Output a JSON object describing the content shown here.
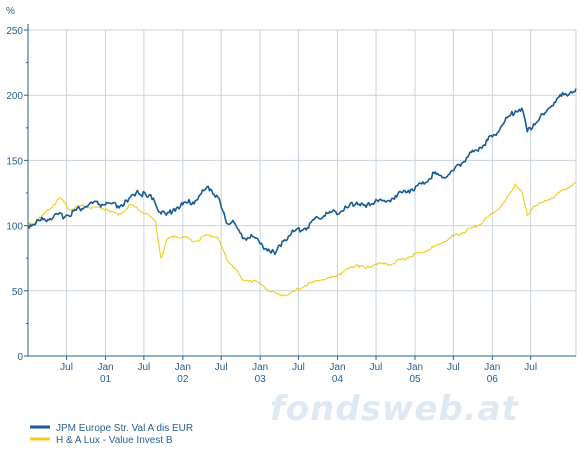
{
  "watermark": "fondsweb.at",
  "chart_data": {
    "type": "line",
    "y_unit": "%",
    "ylim": [
      0,
      250
    ],
    "y_ticks": [
      0,
      50,
      100,
      150,
      200,
      250
    ],
    "grid": true,
    "legend_position": "bottom-left",
    "x_range": [
      "2000-01-01",
      "2007-01-31"
    ],
    "x_tick_marks": [
      {
        "date": "2000-07-01",
        "month": "Jul",
        "year": ""
      },
      {
        "date": "2001-01-01",
        "month": "Jan",
        "year": "01"
      },
      {
        "date": "2001-07-01",
        "month": "Jul",
        "year": ""
      },
      {
        "date": "2002-01-01",
        "month": "Jan",
        "year": "02"
      },
      {
        "date": "2002-07-01",
        "month": "Jul",
        "year": ""
      },
      {
        "date": "2003-01-01",
        "month": "Jan",
        "year": "03"
      },
      {
        "date": "2003-07-01",
        "month": "Jul",
        "year": ""
      },
      {
        "date": "2004-01-01",
        "month": "Jan",
        "year": "04"
      },
      {
        "date": "2004-07-01",
        "month": "Jul",
        "year": ""
      },
      {
        "date": "2005-01-01",
        "month": "Jan",
        "year": "05"
      },
      {
        "date": "2005-07-01",
        "month": "Jul",
        "year": ""
      },
      {
        "date": "2006-01-01",
        "month": "Jan",
        "year": "06"
      },
      {
        "date": "2006-07-01",
        "month": "Jul",
        "year": ""
      }
    ],
    "series": [
      {
        "name": "JPM Europe Str. Val A dis EUR",
        "color": "#1a5b93",
        "points": [
          [
            "2000-01-01",
            100
          ],
          [
            "2000-03-01",
            104
          ],
          [
            "2000-05-01",
            107
          ],
          [
            "2000-07-01",
            108
          ],
          [
            "2000-09-01",
            113
          ],
          [
            "2000-11-01",
            117
          ],
          [
            "2001-01-01",
            116
          ],
          [
            "2001-03-01",
            115
          ],
          [
            "2001-04-15",
            118
          ],
          [
            "2001-06-01",
            127
          ],
          [
            "2001-07-15",
            122
          ],
          [
            "2001-08-15",
            121
          ],
          [
            "2001-09-20",
            109
          ],
          [
            "2001-10-15",
            108
          ],
          [
            "2001-11-20",
            113
          ],
          [
            "2002-01-01",
            116
          ],
          [
            "2002-03-01",
            119
          ],
          [
            "2002-05-01",
            130
          ],
          [
            "2002-06-15",
            122
          ],
          [
            "2002-07-25",
            102
          ],
          [
            "2002-08-25",
            104
          ],
          [
            "2002-10-10",
            90
          ],
          [
            "2002-11-20",
            93
          ],
          [
            "2003-01-01",
            86
          ],
          [
            "2003-02-10",
            82
          ],
          [
            "2003-03-12",
            78
          ],
          [
            "2003-04-15",
            88
          ],
          [
            "2003-05-15",
            92
          ],
          [
            "2003-06-15",
            96
          ],
          [
            "2003-08-01",
            98
          ],
          [
            "2003-10-01",
            106
          ],
          [
            "2003-12-01",
            110
          ],
          [
            "2004-02-01",
            112
          ],
          [
            "2004-04-01",
            118
          ],
          [
            "2004-05-15",
            114
          ],
          [
            "2004-07-01",
            120
          ],
          [
            "2004-08-15",
            118
          ],
          [
            "2004-10-01",
            123
          ],
          [
            "2004-12-01",
            127
          ],
          [
            "2005-02-01",
            132
          ],
          [
            "2005-04-01",
            140
          ],
          [
            "2005-05-15",
            137
          ],
          [
            "2005-07-01",
            142
          ],
          [
            "2005-09-01",
            152
          ],
          [
            "2005-11-01",
            160
          ],
          [
            "2006-01-01",
            168
          ],
          [
            "2006-03-01",
            180
          ],
          [
            "2006-04-20",
            188
          ],
          [
            "2006-05-20",
            190
          ],
          [
            "2006-06-15",
            172
          ],
          [
            "2006-07-15",
            178
          ],
          [
            "2006-09-01",
            185
          ],
          [
            "2006-11-01",
            197
          ],
          [
            "2006-12-15",
            201
          ],
          [
            "2007-01-31",
            205
          ]
        ]
      },
      {
        "name": "H & A Lux - Value Invest B",
        "color": "#f2cc1c",
        "points": [
          [
            "2000-01-01",
            100
          ],
          [
            "2000-03-01",
            106
          ],
          [
            "2000-05-01",
            116
          ],
          [
            "2000-06-01",
            121
          ],
          [
            "2000-07-15",
            112
          ],
          [
            "2000-09-01",
            115
          ],
          [
            "2000-11-01",
            114
          ],
          [
            "2001-01-01",
            113
          ],
          [
            "2001-03-01",
            108
          ],
          [
            "2001-05-01",
            116
          ],
          [
            "2001-07-15",
            109
          ],
          [
            "2001-08-25",
            103
          ],
          [
            "2001-09-20",
            75
          ],
          [
            "2001-10-20",
            90
          ],
          [
            "2001-12-01",
            92
          ],
          [
            "2002-01-15",
            91
          ],
          [
            "2002-03-01",
            88
          ],
          [
            "2002-05-01",
            93
          ],
          [
            "2002-06-15",
            91
          ],
          [
            "2002-07-25",
            75
          ],
          [
            "2002-09-01",
            68
          ],
          [
            "2002-10-10",
            58
          ],
          [
            "2002-12-01",
            58
          ],
          [
            "2003-01-15",
            54
          ],
          [
            "2003-02-20",
            49
          ],
          [
            "2003-04-01",
            47
          ],
          [
            "2003-05-15",
            47
          ],
          [
            "2003-06-15",
            50
          ],
          [
            "2003-08-01",
            54
          ],
          [
            "2003-10-01",
            58
          ],
          [
            "2003-12-01",
            60
          ],
          [
            "2004-02-01",
            65
          ],
          [
            "2004-04-01",
            70
          ],
          [
            "2004-05-15",
            67
          ],
          [
            "2004-07-01",
            71
          ],
          [
            "2004-09-01",
            70
          ],
          [
            "2004-11-01",
            74
          ],
          [
            "2005-01-01",
            78
          ],
          [
            "2005-03-01",
            81
          ],
          [
            "2005-05-01",
            86
          ],
          [
            "2005-07-01",
            92
          ],
          [
            "2005-09-01",
            96
          ],
          [
            "2005-11-01",
            101
          ],
          [
            "2006-01-01",
            109
          ],
          [
            "2006-03-01",
            118
          ],
          [
            "2006-04-20",
            132
          ],
          [
            "2006-05-20",
            126
          ],
          [
            "2006-06-15",
            108
          ],
          [
            "2006-07-15",
            115
          ],
          [
            "2006-09-01",
            118
          ],
          [
            "2006-11-01",
            124
          ],
          [
            "2007-01-31",
            133
          ]
        ]
      }
    ]
  }
}
